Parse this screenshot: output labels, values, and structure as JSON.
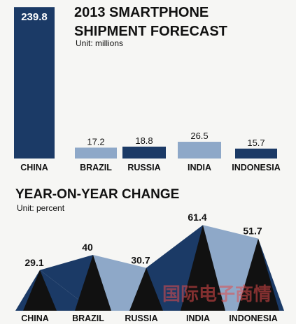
{
  "chart_data": [
    {
      "type": "bar",
      "title": "2013 SMARTPHONE SHIPMENT FORECAST",
      "subtitle": "Unit: millions",
      "categories": [
        "CHINA",
        "BRAZIL",
        "RUSSIA",
        "INDIA",
        "INDONESIA"
      ],
      "values": [
        239.8,
        17.2,
        18.8,
        26.5,
        15.7
      ],
      "value_labels": [
        "239.8",
        "17.2",
        "18.8",
        "26.5",
        "15.7"
      ],
      "colors": [
        "#1b3a66",
        "#8ea8c8",
        "#1b3a66",
        "#8ea8c8",
        "#1b3a66"
      ],
      "ylim": [
        0,
        240
      ]
    },
    {
      "type": "line",
      "title": "YEAR-ON-YEAR CHANGE",
      "subtitle": "Unit: percent",
      "categories": [
        "CHINA",
        "BRAZIL",
        "RUSSIA",
        "INDIA",
        "INDONESIA"
      ],
      "values": [
        29.1,
        40,
        30.7,
        61.4,
        51.7
      ],
      "value_labels": [
        "29.1",
        "40",
        "30.7",
        "61.4",
        "51.7"
      ],
      "colors": {
        "dark": "#1b3a66",
        "light": "#8ea8c8",
        "black": "#111111"
      },
      "ylim": [
        0,
        65
      ]
    }
  ],
  "watermark": "国际电子商情"
}
